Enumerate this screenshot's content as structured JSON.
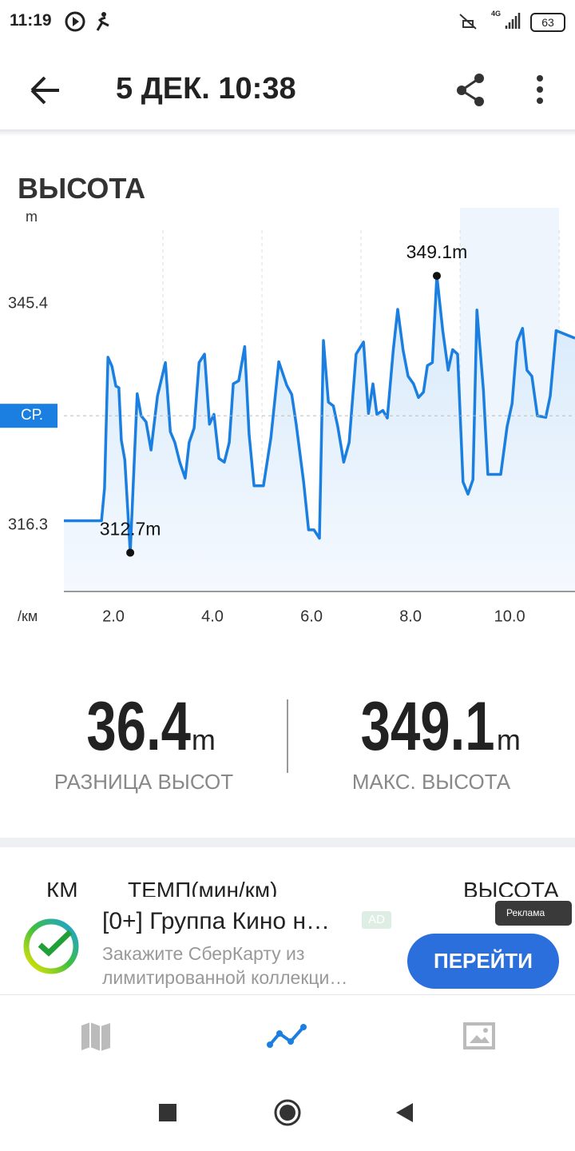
{
  "status_bar": {
    "time": "11:19",
    "network": "4G",
    "battery": "63"
  },
  "header": {
    "title": "5 ДЕК. 10:38"
  },
  "chart_data": {
    "type": "line",
    "title": "ВЫСОТА",
    "y_unit": "m",
    "x_unit": "/км",
    "color": "#1a7fe0",
    "x": [
      1.0,
      1.76,
      1.82,
      1.89,
      1.97,
      2.05,
      2.11,
      2.16,
      2.23,
      2.34,
      2.48,
      2.56,
      2.66,
      2.76,
      2.89,
      3.05,
      3.15,
      3.24,
      3.34,
      3.45,
      3.53,
      3.63,
      3.73,
      3.84,
      3.94,
      4.03,
      4.13,
      4.24,
      4.34,
      4.42,
      4.53,
      4.65,
      4.74,
      4.84,
      5.03,
      5.18,
      5.34,
      5.5,
      5.6,
      5.69,
      5.84,
      5.94,
      6.05,
      6.16,
      6.24,
      6.34,
      6.44,
      6.53,
      6.65,
      6.76,
      6.9,
      7.05,
      7.15,
      7.24,
      7.32,
      7.44,
      7.53,
      7.65,
      7.74,
      7.85,
      7.95,
      8.06,
      8.16,
      8.26,
      8.34,
      8.44,
      8.53,
      8.65,
      8.76,
      8.85,
      8.95,
      9.06,
      9.16,
      9.26,
      9.34,
      9.47,
      9.56,
      9.82,
      9.95,
      10.05,
      10.15,
      10.26,
      10.35,
      10.45,
      10.56,
      10.73,
      10.82,
      10.94,
      11.32
    ],
    "values": [
      316.9,
      316.9,
      321.2,
      338.4,
      337.2,
      334.6,
      334.4,
      327.5,
      324.9,
      312.7,
      333.6,
      330.7,
      329.9,
      326.2,
      333.3,
      337.7,
      328.6,
      327.2,
      324.6,
      322.5,
      327.2,
      329.1,
      337.7,
      338.8,
      329.6,
      330.9,
      325.1,
      324.6,
      327.2,
      334.9,
      335.3,
      339.8,
      328.3,
      321.5,
      321.5,
      327.8,
      337.8,
      334.7,
      333.5,
      329.6,
      322.0,
      315.7,
      315.7,
      314.6,
      340.6,
      332.5,
      332.0,
      329.3,
      324.6,
      327.2,
      338.8,
      340.4,
      331.0,
      334.9,
      330.9,
      331.4,
      330.4,
      339.3,
      344.7,
      339.3,
      335.9,
      334.9,
      333.1,
      333.8,
      337.3,
      337.7,
      349.1,
      341.9,
      336.7,
      339.4,
      338.8,
      322.0,
      320.4,
      322.3,
      344.6,
      334.1,
      323.0,
      323.0,
      329.3,
      332.3,
      340.4,
      342.2,
      336.7,
      335.9,
      330.7,
      330.5,
      333.3,
      341.9,
      340.9
    ],
    "xlim": [
      1.0,
      11.32
    ],
    "ylim": [
      307.6,
      355.1
    ],
    "xticks": [
      {
        "value": 2,
        "label": "2.0"
      },
      {
        "value": 4,
        "label": "4.0"
      },
      {
        "value": 6,
        "label": "6.0"
      },
      {
        "value": 8,
        "label": "8.0"
      },
      {
        "value": 10,
        "label": "10.0"
      }
    ],
    "xgrid": [
      3,
      5,
      7,
      9,
      11
    ],
    "yticks": [
      316.3,
      345.4
    ],
    "average": {
      "value": 330.7,
      "label": "СР."
    },
    "annotations": [
      {
        "x": 8.53,
        "y": 349.1,
        "label": "349.1m"
      },
      {
        "x": 2.34,
        "y": 312.7,
        "label": "312.7m"
      }
    ]
  },
  "stats": [
    {
      "value": "36.4",
      "unit": "m",
      "label": "РАЗНИЦА ВЫСОТ"
    },
    {
      "value": "349.1",
      "unit": "m",
      "label": "МАКС. ВЫСОТА"
    }
  ],
  "table_header": [
    "КМ",
    "ТЕМП(мин/км)",
    "ВЫСОТА"
  ],
  "ad": {
    "title": "[0+] Группа Кино н…",
    "badge": "AD",
    "text": "Закажите СберКарту из лимитированной коллекци…",
    "button": "ПЕРЕЙТИ",
    "tag": "Реклама"
  }
}
